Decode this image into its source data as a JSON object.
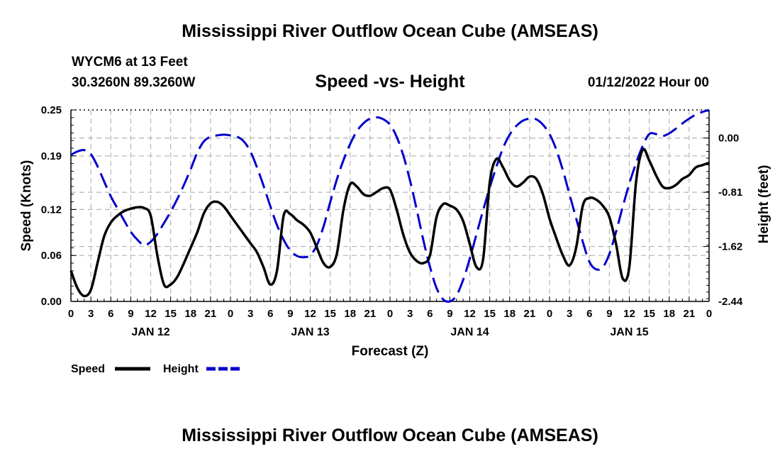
{
  "header": {
    "title": "Mississippi River Outflow Ocean Cube (AMSEAS)",
    "station": "WYCM6 at 13 Feet",
    "coords": "30.3260N  89.3260W",
    "subtitle": "Speed -vs- Height",
    "date": "01/12/2022 Hour 00"
  },
  "footer": {
    "title": "Mississippi River Outflow Ocean Cube (AMSEAS)"
  },
  "chart_data": {
    "type": "line",
    "title": "Speed -vs- Height",
    "xlabel": "Forecast (Z)",
    "ylabel": "Speed (Knots)",
    "y2label": "Height (feet)",
    "xlim": [
      0,
      96
    ],
    "ylim": [
      0,
      0.25
    ],
    "y2lim": [
      -2.44,
      0.42
    ],
    "x_tick_labels": [
      "0",
      "3",
      "6",
      "9",
      "12",
      "15",
      "18",
      "21",
      "0",
      "3",
      "6",
      "9",
      "12",
      "15",
      "18",
      "21",
      "0",
      "3",
      "6",
      "9",
      "12",
      "15",
      "18",
      "21",
      "0",
      "3",
      "6",
      "9",
      "12",
      "15",
      "18",
      "21",
      "0"
    ],
    "day_labels": [
      {
        "x": 12,
        "label": "JAN 12"
      },
      {
        "x": 36,
        "label": "JAN 13"
      },
      {
        "x": 60,
        "label": "JAN 14"
      },
      {
        "x": 84,
        "label": "JAN 15"
      }
    ],
    "y_ticks": [
      {
        "value": 0.0,
        "label": "0.00"
      },
      {
        "value": 0.06,
        "label": "0.06"
      },
      {
        "value": 0.12,
        "label": "0.12"
      },
      {
        "value": 0.19,
        "label": "0.19"
      },
      {
        "value": 0.25,
        "label": "0.25"
      }
    ],
    "y2_ticks": [
      {
        "value": 0.0,
        "label": "0.00"
      },
      {
        "value": -0.81,
        "label": "-0.81"
      },
      {
        "value": -1.62,
        "label": "-1.62"
      },
      {
        "value": -2.44,
        "label": "-2.44"
      }
    ],
    "grid": true,
    "legend": {
      "position": "bottom-left",
      "speed_label": "Speed",
      "height_label": "Height"
    },
    "series": [
      {
        "name": "Speed",
        "axis": "left",
        "color": "#000000",
        "style": "solid",
        "points": [
          [
            0,
            0.04
          ],
          [
            1,
            0.017
          ],
          [
            2,
            0.007
          ],
          [
            3,
            0.015
          ],
          [
            4,
            0.05
          ],
          [
            5,
            0.085
          ],
          [
            6,
            0.103
          ],
          [
            7,
            0.112
          ],
          [
            8,
            0.118
          ],
          [
            9,
            0.121
          ],
          [
            10,
            0.123
          ],
          [
            11,
            0.122
          ],
          [
            12,
            0.112
          ],
          [
            13,
            0.06
          ],
          [
            14,
            0.022
          ],
          [
            15,
            0.022
          ],
          [
            16,
            0.032
          ],
          [
            17,
            0.05
          ],
          [
            18,
            0.07
          ],
          [
            19,
            0.09
          ],
          [
            20,
            0.115
          ],
          [
            21,
            0.128
          ],
          [
            22,
            0.13
          ],
          [
            23,
            0.124
          ],
          [
            24,
            0.112
          ],
          [
            25,
            0.1
          ],
          [
            26,
            0.088
          ],
          [
            27,
            0.076
          ],
          [
            28,
            0.064
          ],
          [
            29,
            0.044
          ],
          [
            30,
            0.022
          ],
          [
            31,
            0.04
          ],
          [
            32,
            0.112
          ],
          [
            33,
            0.114
          ],
          [
            34,
            0.106
          ],
          [
            35,
            0.1
          ],
          [
            36,
            0.09
          ],
          [
            37,
            0.07
          ],
          [
            38,
            0.05
          ],
          [
            39,
            0.045
          ],
          [
            40,
            0.062
          ],
          [
            41,
            0.12
          ],
          [
            42,
            0.153
          ],
          [
            43,
            0.15
          ],
          [
            44,
            0.14
          ],
          [
            45,
            0.138
          ],
          [
            46,
            0.143
          ],
          [
            47,
            0.148
          ],
          [
            48,
            0.146
          ],
          [
            49,
            0.12
          ],
          [
            50,
            0.087
          ],
          [
            51,
            0.064
          ],
          [
            52,
            0.053
          ],
          [
            53,
            0.05
          ],
          [
            54,
            0.06
          ],
          [
            55,
            0.11
          ],
          [
            56,
            0.127
          ],
          [
            57,
            0.125
          ],
          [
            58,
            0.12
          ],
          [
            59,
            0.105
          ],
          [
            60,
            0.075
          ],
          [
            61,
            0.045
          ],
          [
            62,
            0.055
          ],
          [
            63,
            0.155
          ],
          [
            64,
            0.186
          ],
          [
            65,
            0.175
          ],
          [
            66,
            0.158
          ],
          [
            67,
            0.15
          ],
          [
            68,
            0.155
          ],
          [
            69,
            0.163
          ],
          [
            70,
            0.16
          ],
          [
            71,
            0.14
          ],
          [
            72,
            0.108
          ],
          [
            73,
            0.083
          ],
          [
            74,
            0.06
          ],
          [
            75,
            0.047
          ],
          [
            76,
            0.07
          ],
          [
            77,
            0.125
          ],
          [
            78,
            0.135
          ],
          [
            79,
            0.133
          ],
          [
            80,
            0.125
          ],
          [
            81,
            0.11
          ],
          [
            82,
            0.075
          ],
          [
            83,
            0.03
          ],
          [
            84,
            0.045
          ],
          [
            85,
            0.155
          ],
          [
            86,
            0.198
          ],
          [
            87,
            0.184
          ],
          [
            88,
            0.165
          ],
          [
            89,
            0.15
          ],
          [
            90,
            0.148
          ],
          [
            91,
            0.152
          ],
          [
            92,
            0.16
          ],
          [
            93,
            0.165
          ],
          [
            94,
            0.175
          ],
          [
            95,
            0.178
          ],
          [
            96,
            0.181
          ]
        ]
      },
      {
        "name": "Height",
        "axis": "right",
        "color": "#0000cc",
        "style": "dashed",
        "points": [
          [
            0,
            -0.25
          ],
          [
            1,
            -0.2
          ],
          [
            2,
            -0.18
          ],
          [
            3,
            -0.24
          ],
          [
            4,
            -0.42
          ],
          [
            5,
            -0.65
          ],
          [
            6,
            -0.87
          ],
          [
            7,
            -1.05
          ],
          [
            8,
            -1.23
          ],
          [
            9,
            -1.4
          ],
          [
            10,
            -1.52
          ],
          [
            11,
            -1.6
          ],
          [
            12,
            -1.55
          ],
          [
            13,
            -1.43
          ],
          [
            14,
            -1.27
          ],
          [
            15,
            -1.1
          ],
          [
            16,
            -0.91
          ],
          [
            17,
            -0.7
          ],
          [
            18,
            -0.47
          ],
          [
            19,
            -0.22
          ],
          [
            20,
            -0.05
          ],
          [
            21,
            0.02
          ],
          [
            22,
            0.04
          ],
          [
            23,
            0.05
          ],
          [
            24,
            0.04
          ],
          [
            25,
            0.02
          ],
          [
            26,
            -0.05
          ],
          [
            27,
            -0.2
          ],
          [
            28,
            -0.44
          ],
          [
            29,
            -0.72
          ],
          [
            30,
            -1.02
          ],
          [
            31,
            -1.3
          ],
          [
            32,
            -1.52
          ],
          [
            33,
            -1.68
          ],
          [
            34,
            -1.76
          ],
          [
            35,
            -1.78
          ],
          [
            36,
            -1.75
          ],
          [
            37,
            -1.6
          ],
          [
            38,
            -1.32
          ],
          [
            39,
            -0.96
          ],
          [
            40,
            -0.62
          ],
          [
            41,
            -0.33
          ],
          [
            42,
            -0.09
          ],
          [
            43,
            0.1
          ],
          [
            44,
            0.22
          ],
          [
            45,
            0.29
          ],
          [
            46,
            0.31
          ],
          [
            47,
            0.28
          ],
          [
            48,
            0.2
          ],
          [
            49,
            0.02
          ],
          [
            50,
            -0.26
          ],
          [
            51,
            -0.63
          ],
          [
            52,
            -1.06
          ],
          [
            53,
            -1.52
          ],
          [
            54,
            -1.92
          ],
          [
            55,
            -2.24
          ],
          [
            56,
            -2.41
          ],
          [
            57,
            -2.44
          ],
          [
            58,
            -2.35
          ],
          [
            59,
            -2.12
          ],
          [
            60,
            -1.8
          ],
          [
            61,
            -1.44
          ],
          [
            62,
            -1.08
          ],
          [
            63,
            -0.74
          ],
          [
            64,
            -0.43
          ],
          [
            65,
            -0.15
          ],
          [
            66,
            0.05
          ],
          [
            67,
            0.18
          ],
          [
            68,
            0.26
          ],
          [
            69,
            0.29
          ],
          [
            70,
            0.28
          ],
          [
            71,
            0.2
          ],
          [
            72,
            0.06
          ],
          [
            73,
            -0.17
          ],
          [
            74,
            -0.48
          ],
          [
            75,
            -0.84
          ],
          [
            76,
            -1.2
          ],
          [
            77,
            -1.55
          ],
          [
            78,
            -1.85
          ],
          [
            79,
            -1.96
          ],
          [
            80,
            -1.93
          ],
          [
            81,
            -1.73
          ],
          [
            82,
            -1.4
          ],
          [
            83,
            -1.03
          ],
          [
            84,
            -0.68
          ],
          [
            85,
            -0.38
          ],
          [
            86,
            -0.12
          ],
          [
            87,
            0.06
          ],
          [
            88,
            0.06
          ],
          [
            89,
            0.03
          ],
          [
            90,
            0.07
          ],
          [
            91,
            0.14
          ],
          [
            92,
            0.22
          ],
          [
            93,
            0.29
          ],
          [
            94,
            0.35
          ],
          [
            95,
            0.39
          ],
          [
            96,
            0.42
          ]
        ]
      }
    ]
  }
}
